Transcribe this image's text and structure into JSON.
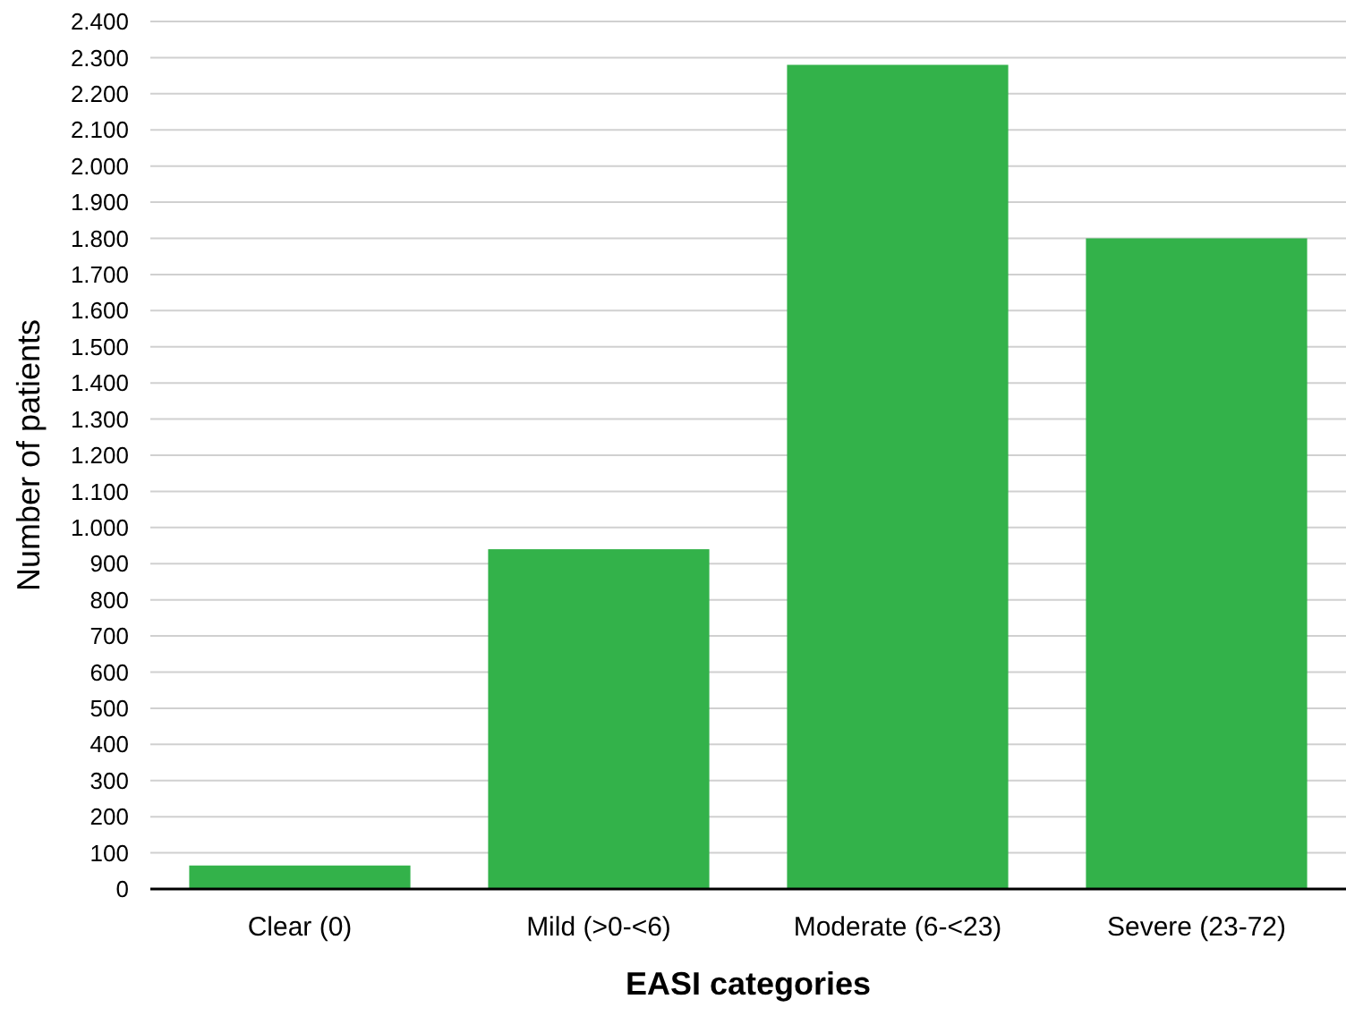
{
  "chart_data": {
    "type": "bar",
    "xlabel": "EASI categories",
    "ylabel": "Number of patients",
    "categories": [
      "Clear (0)",
      "Mild (>0-<6)",
      "Moderate (6-<23)",
      "Severe (23-72)"
    ],
    "values": [
      65,
      940,
      2280,
      1800
    ],
    "color": "#33b24a",
    "ylim": [
      0,
      2400
    ],
    "yticks": [
      0,
      100,
      200,
      300,
      400,
      500,
      600,
      700,
      800,
      900,
      {
        "value": 1000,
        "label": "1.000"
      },
      {
        "value": 1100,
        "label": "1.100"
      },
      {
        "value": 1200,
        "label": "1.200"
      },
      {
        "value": 1300,
        "label": "1.300"
      },
      {
        "value": 1400,
        "label": "1.400"
      },
      {
        "value": 1500,
        "label": "1.500"
      },
      {
        "value": 1600,
        "label": "1.600"
      },
      {
        "value": 1700,
        "label": "1.700"
      },
      {
        "value": 1800,
        "label": "1.800"
      },
      {
        "value": 1900,
        "label": "1.900"
      },
      {
        "value": 2000,
        "label": "2.000"
      },
      {
        "value": 2100,
        "label": "2.100"
      },
      {
        "value": 2200,
        "label": "2.200"
      },
      {
        "value": 2300,
        "label": "2.300"
      },
      {
        "value": 2400,
        "label": "2.400"
      }
    ],
    "grid": "y"
  }
}
